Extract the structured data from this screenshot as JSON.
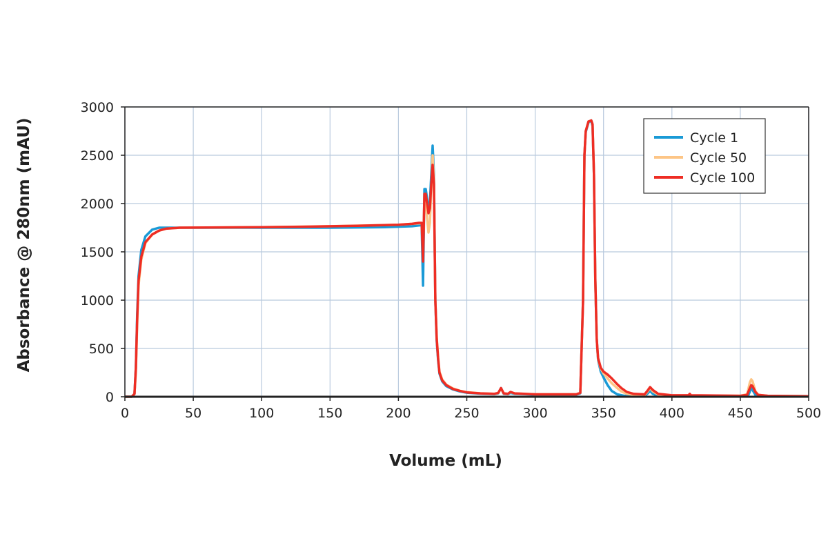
{
  "chart_data": {
    "type": "line",
    "title": "",
    "xlabel": "Volume (mL)",
    "ylabel": "Absorbance @ 280nm (mAU)",
    "xlim": [
      0,
      500
    ],
    "ylim": [
      0,
      3000
    ],
    "xticks": [
      0,
      50,
      100,
      150,
      200,
      250,
      300,
      350,
      400,
      450,
      500
    ],
    "yticks": [
      0,
      500,
      1000,
      1500,
      2000,
      2500,
      3000
    ],
    "grid": true,
    "legend_position": "top-right",
    "series": [
      {
        "name": "Cycle 1",
        "color": "#1a9ad6",
        "points": [
          [
            0,
            0
          ],
          [
            5,
            0
          ],
          [
            7,
            30
          ],
          [
            8,
            300
          ],
          [
            9,
            850
          ],
          [
            10,
            1250
          ],
          [
            12,
            1520
          ],
          [
            15,
            1660
          ],
          [
            20,
            1730
          ],
          [
            25,
            1750
          ],
          [
            40,
            1750
          ],
          [
            100,
            1750
          ],
          [
            150,
            1750
          ],
          [
            190,
            1755
          ],
          [
            210,
            1765
          ],
          [
            216,
            1775
          ],
          [
            217,
            1780
          ],
          [
            218,
            1150
          ],
          [
            219,
            2150
          ],
          [
            220,
            2150
          ],
          [
            221,
            2050
          ],
          [
            222,
            1950
          ],
          [
            223,
            2000
          ],
          [
            224,
            2300
          ],
          [
            225,
            2600
          ],
          [
            226,
            2300
          ],
          [
            227,
            1000
          ],
          [
            228,
            580
          ],
          [
            229,
            380
          ],
          [
            230,
            240
          ],
          [
            232,
            160
          ],
          [
            235,
            110
          ],
          [
            240,
            75
          ],
          [
            245,
            55
          ],
          [
            250,
            42
          ],
          [
            260,
            32
          ],
          [
            270,
            28
          ],
          [
            273,
            35
          ],
          [
            275,
            90
          ],
          [
            277,
            30
          ],
          [
            280,
            28
          ],
          [
            282,
            40
          ],
          [
            285,
            30
          ],
          [
            300,
            22
          ],
          [
            330,
            22
          ],
          [
            333,
            35
          ],
          [
            335,
            1000
          ],
          [
            336,
            2500
          ],
          [
            337,
            2740
          ],
          [
            339,
            2840
          ],
          [
            341,
            2860
          ],
          [
            342,
            2800
          ],
          [
            343,
            2300
          ],
          [
            344,
            1200
          ],
          [
            345,
            600
          ],
          [
            346,
            380
          ],
          [
            348,
            260
          ],
          [
            350,
            200
          ],
          [
            353,
            120
          ],
          [
            356,
            60
          ],
          [
            360,
            25
          ],
          [
            365,
            10
          ],
          [
            380,
            10
          ],
          [
            382,
            30
          ],
          [
            384,
            60
          ],
          [
            386,
            30
          ],
          [
            390,
            10
          ],
          [
            400,
            8
          ],
          [
            450,
            5
          ],
          [
            456,
            20
          ],
          [
            458,
            90
          ],
          [
            459,
            70
          ],
          [
            461,
            20
          ],
          [
            463,
            8
          ],
          [
            500,
            5
          ]
        ]
      },
      {
        "name": "Cycle 50",
        "color": "#fdc586",
        "points": [
          [
            0,
            0
          ],
          [
            5,
            0
          ],
          [
            7,
            30
          ],
          [
            8,
            250
          ],
          [
            9,
            750
          ],
          [
            10,
            1150
          ],
          [
            12,
            1420
          ],
          [
            15,
            1590
          ],
          [
            20,
            1680
          ],
          [
            25,
            1720
          ],
          [
            30,
            1740
          ],
          [
            40,
            1750
          ],
          [
            100,
            1755
          ],
          [
            150,
            1765
          ],
          [
            200,
            1780
          ],
          [
            215,
            1795
          ],
          [
            217,
            1795
          ],
          [
            218,
            1500
          ],
          [
            219,
            2050
          ],
          [
            220,
            2050
          ],
          [
            221,
            1850
          ],
          [
            222,
            1700
          ],
          [
            223,
            1800
          ],
          [
            224,
            2150
          ],
          [
            225,
            2500
          ],
          [
            226,
            2250
          ],
          [
            227,
            1000
          ],
          [
            228,
            620
          ],
          [
            229,
            420
          ],
          [
            230,
            260
          ],
          [
            232,
            180
          ],
          [
            235,
            125
          ],
          [
            240,
            85
          ],
          [
            245,
            62
          ],
          [
            250,
            48
          ],
          [
            260,
            36
          ],
          [
            270,
            30
          ],
          [
            273,
            38
          ],
          [
            275,
            85
          ],
          [
            277,
            34
          ],
          [
            280,
            30
          ],
          [
            282,
            48
          ],
          [
            285,
            34
          ],
          [
            300,
            25
          ],
          [
            330,
            25
          ],
          [
            333,
            40
          ],
          [
            335,
            1000
          ],
          [
            336,
            2500
          ],
          [
            337,
            2750
          ],
          [
            339,
            2850
          ],
          [
            341,
            2860
          ],
          [
            342,
            2820
          ],
          [
            343,
            2300
          ],
          [
            344,
            1200
          ],
          [
            345,
            600
          ],
          [
            346,
            390
          ],
          [
            348,
            290
          ],
          [
            350,
            240
          ],
          [
            353,
            190
          ],
          [
            356,
            140
          ],
          [
            360,
            90
          ],
          [
            363,
            55
          ],
          [
            367,
            30
          ],
          [
            372,
            20
          ],
          [
            380,
            18
          ],
          [
            382,
            50
          ],
          [
            384,
            90
          ],
          [
            386,
            55
          ],
          [
            390,
            22
          ],
          [
            400,
            12
          ],
          [
            450,
            10
          ],
          [
            455,
            25
          ],
          [
            457,
            150
          ],
          [
            458,
            180
          ],
          [
            459,
            160
          ],
          [
            461,
            60
          ],
          [
            463,
            20
          ],
          [
            470,
            10
          ],
          [
            500,
            5
          ]
        ]
      },
      {
        "name": "Cycle 100",
        "color": "#ee2d24",
        "points": [
          [
            0,
            0
          ],
          [
            5,
            0
          ],
          [
            7,
            30
          ],
          [
            8,
            300
          ],
          [
            9,
            800
          ],
          [
            10,
            1200
          ],
          [
            12,
            1450
          ],
          [
            15,
            1600
          ],
          [
            20,
            1680
          ],
          [
            25,
            1720
          ],
          [
            30,
            1740
          ],
          [
            40,
            1750
          ],
          [
            100,
            1755
          ],
          [
            130,
            1760
          ],
          [
            170,
            1770
          ],
          [
            200,
            1780
          ],
          [
            210,
            1790
          ],
          [
            215,
            1800
          ],
          [
            217,
            1800
          ],
          [
            218,
            1400
          ],
          [
            219,
            2100
          ],
          [
            220,
            2100
          ],
          [
            221,
            2000
          ],
          [
            222,
            1900
          ],
          [
            223,
            1950
          ],
          [
            224,
            2200
          ],
          [
            225,
            2400
          ],
          [
            226,
            2200
          ],
          [
            227,
            1000
          ],
          [
            228,
            600
          ],
          [
            229,
            400
          ],
          [
            230,
            250
          ],
          [
            232,
            170
          ],
          [
            235,
            120
          ],
          [
            240,
            80
          ],
          [
            245,
            60
          ],
          [
            250,
            45
          ],
          [
            260,
            35
          ],
          [
            270,
            30
          ],
          [
            273,
            40
          ],
          [
            275,
            90
          ],
          [
            277,
            35
          ],
          [
            280,
            30
          ],
          [
            282,
            50
          ],
          [
            285,
            35
          ],
          [
            300,
            25
          ],
          [
            330,
            25
          ],
          [
            333,
            40
          ],
          [
            335,
            1000
          ],
          [
            336,
            2500
          ],
          [
            337,
            2750
          ],
          [
            339,
            2850
          ],
          [
            341,
            2860
          ],
          [
            342,
            2820
          ],
          [
            343,
            2300
          ],
          [
            344,
            1200
          ],
          [
            345,
            600
          ],
          [
            346,
            400
          ],
          [
            348,
            300
          ],
          [
            350,
            260
          ],
          [
            353,
            230
          ],
          [
            356,
            190
          ],
          [
            360,
            130
          ],
          [
            363,
            90
          ],
          [
            367,
            50
          ],
          [
            372,
            30
          ],
          [
            380,
            25
          ],
          [
            382,
            60
          ],
          [
            384,
            100
          ],
          [
            386,
            70
          ],
          [
            390,
            30
          ],
          [
            400,
            15
          ],
          [
            412,
            15
          ],
          [
            413,
            30
          ],
          [
            414,
            15
          ],
          [
            450,
            10
          ],
          [
            455,
            20
          ],
          [
            457,
            90
          ],
          [
            458,
            120
          ],
          [
            459,
            110
          ],
          [
            461,
            50
          ],
          [
            463,
            20
          ],
          [
            470,
            10
          ],
          [
            500,
            5
          ]
        ]
      }
    ]
  }
}
